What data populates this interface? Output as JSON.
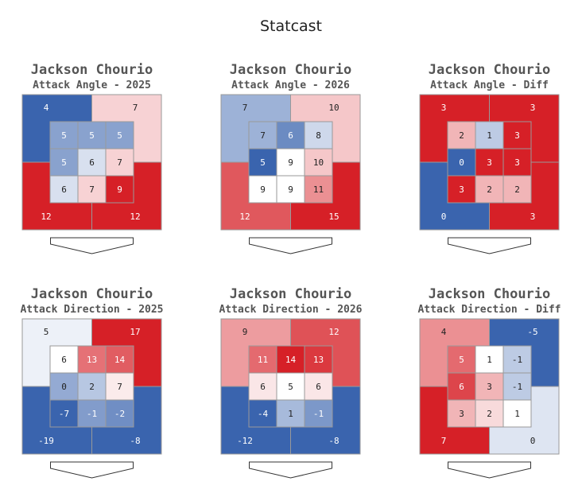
{
  "suptitle": "Statcast",
  "colors": {
    "red": "#d62027",
    "blue": "#3a64ae",
    "white": "#ffffff",
    "edge": "#999999",
    "plate": "#333333"
  },
  "chart_data": [
    {
      "type": "heatmap",
      "player": "Jackson Chourio",
      "metric": "Attack Angle - 2025",
      "scale_range": [
        4,
        9
      ],
      "outer": [
        4,
        7,
        12,
        12
      ],
      "inner": [
        [
          5,
          5,
          5
        ],
        [
          5,
          6,
          7
        ],
        [
          6,
          7,
          9
        ]
      ]
    },
    {
      "type": "heatmap",
      "player": "Jackson Chourio",
      "metric": "Attack Angle - 2026",
      "scale_range": [
        5,
        13
      ],
      "outer": [
        7,
        10,
        12,
        15
      ],
      "inner": [
        [
          7,
          6,
          8
        ],
        [
          5,
          9,
          10
        ],
        [
          9,
          9,
          11
        ]
      ]
    },
    {
      "type": "heatmap",
      "player": "Jackson Chourio",
      "metric": "Attack Angle - Diff",
      "scale_range": [
        0,
        3
      ],
      "outer": [
        3,
        3,
        0,
        3
      ],
      "inner": [
        [
          2,
          1,
          3
        ],
        [
          0,
          3,
          3
        ],
        [
          3,
          2,
          2
        ]
      ]
    },
    {
      "type": "heatmap",
      "player": "Jackson Chourio",
      "metric": "Attack Direction - 2025",
      "scale_range": [
        -5,
        17
      ],
      "outer": [
        5,
        17,
        -19,
        -8
      ],
      "inner": [
        [
          6,
          13,
          14
        ],
        [
          0,
          2,
          7
        ],
        [
          -7,
          -1,
          -2
        ]
      ]
    },
    {
      "type": "heatmap",
      "player": "Jackson Chourio",
      "metric": "Attack Direction - 2026",
      "scale_range": [
        -4,
        14
      ],
      "outer": [
        9,
        12,
        -12,
        -8
      ],
      "inner": [
        [
          11,
          14,
          13
        ],
        [
          6,
          5,
          6
        ],
        [
          -4,
          1,
          -1
        ]
      ]
    },
    {
      "type": "heatmap",
      "player": "Jackson Chourio",
      "metric": "Attack Direction - Diff",
      "scale_range": [
        -5,
        7
      ],
      "outer": [
        4,
        -5,
        7,
        0
      ],
      "inner": [
        [
          5,
          1,
          -1
        ],
        [
          6,
          3,
          -1
        ],
        [
          3,
          2,
          1
        ]
      ]
    }
  ]
}
